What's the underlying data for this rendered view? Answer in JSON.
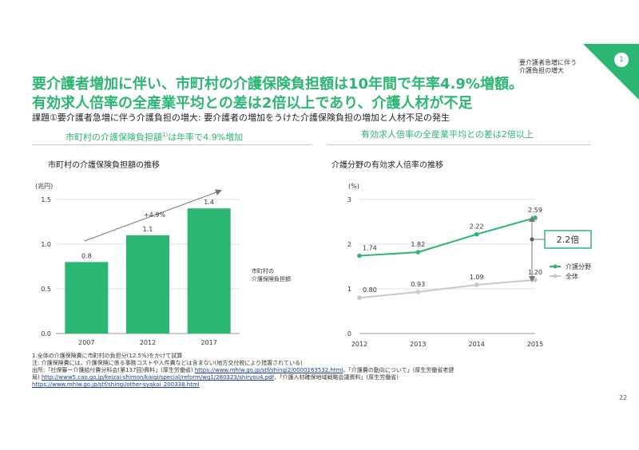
{
  "header": {
    "badge_number": "1",
    "note_line1": "要介護者急増に伴う",
    "note_line2": "介護負担の増大",
    "title_line1": "要介護者増加に伴い、市町村の介護保険負担額は10年間で年率4.9%増額。",
    "title_line2": "有効求人倍率の全産業平均との差は2倍以上であり、介護人材が不足",
    "subtitle": "課題①要介護者急増に伴う介護負担の増大: 要介護者の増加をうけた介護保険負担の増加と人材不足の発生"
  },
  "left_section": {
    "heading_a": "市町村の介護保険負担額",
    "heading_sup": "1)",
    "heading_b": "は年率で4.9%増加"
  },
  "right_section": {
    "heading": "有効求人倍率の全産業平均との差は2倍以上"
  },
  "chart_data": [
    {
      "type": "bar",
      "title": "市町村の介護保険負担額の推移",
      "ylabel": "(兆円)",
      "categories": [
        "2007",
        "2012",
        "2017"
      ],
      "values": [
        0.8,
        1.1,
        1.4
      ],
      "value_labels": [
        "0.8",
        "1.1",
        "1.4"
      ],
      "ylim": [
        0,
        1.5
      ],
      "yticks": [
        "0.0",
        "0.5",
        "1.0",
        "1.5"
      ],
      "legend_line1": "市町村の",
      "legend_line2": "介護保険負担額",
      "growth_label": "+4.9%",
      "grid": true,
      "bar_color": "#2bb673"
    },
    {
      "type": "line",
      "title": "介護分野の有効求人倍率の推移",
      "ylabel": "(%)",
      "x": [
        "2012",
        "2013",
        "2014",
        "2015"
      ],
      "ylim": [
        0,
        3
      ],
      "yticks": [
        "0",
        "1",
        "2",
        "3"
      ],
      "series": [
        {
          "name": "介護分野",
          "values": [
            1.74,
            1.82,
            2.22,
            2.59
          ],
          "labels": [
            "1.74",
            "1.82",
            "2.22",
            "2.59"
          ],
          "color": "#2bb673"
        },
        {
          "name": "全体",
          "values": [
            0.8,
            0.93,
            1.09,
            1.2
          ],
          "labels": [
            "0.80",
            "0.93",
            "1.09",
            "1.20"
          ],
          "color": "#c8c8c8"
        }
      ],
      "gap_label": "2.2倍",
      "grid": true
    }
  ],
  "footnotes": {
    "note1": "1.全体の介護保険費に市町村の負担分(12.5%)をかけて試算",
    "note2": "注: 介護保険費には、介護保険に係る事務コストや人件費などは含まない(地方交付税により措置されている)",
    "source_prefix": "出所:「社保審ー介護給付費分科会(第137回)資料」(厚生労働省) ",
    "link1": "https://www.mhlw.go.jp/stf/shingi2/0000163532.html",
    "source_mid1": "、「介護費の動向について」(厚生労働省老健",
    "source_line2_prefix": "局) ",
    "link2": "http://www5.cao.go.jp/keizai-shimon/kaigi/special/reform/wg1/280323/shiryou4.pdf",
    "source_mid2": "、「介護人材確保地域戦略会議資料」(厚生労働省)",
    "link3": "https://www.mhlw.go.jp/stf/shingi/other-syakai_200338.html"
  },
  "page_number": "22"
}
